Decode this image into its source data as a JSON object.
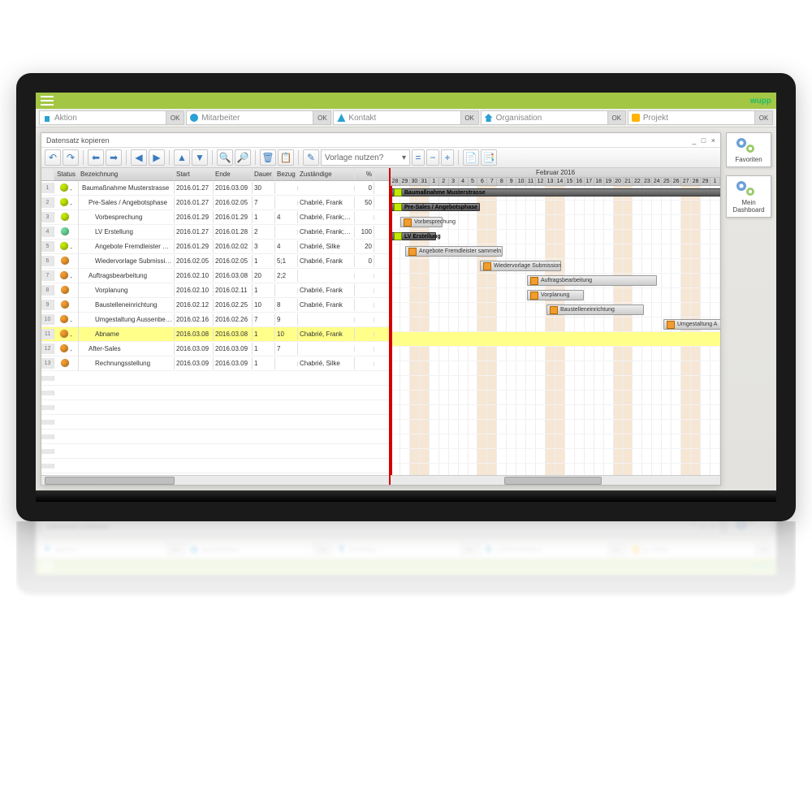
{
  "brand": "wupp",
  "search": [
    {
      "icon": "briefcase",
      "label": "Aktion",
      "ok": "OK"
    },
    {
      "icon": "people",
      "label": "Mitarbeiter",
      "ok": "OK"
    },
    {
      "icon": "contact",
      "label": "Kontakt",
      "ok": "OK"
    },
    {
      "icon": "house",
      "label": "Organisation",
      "ok": "OK"
    },
    {
      "icon": "proj",
      "label": "Projekt",
      "ok": "OK"
    }
  ],
  "window": {
    "title": "Datensatz kopieren",
    "min": "_",
    "max": "□",
    "close": "×"
  },
  "toolbar": {
    "vorlage_label": "Vorlage nutzen?",
    "vorlage_dd": "▾"
  },
  "columns": {
    "num": "",
    "status": "Status",
    "desc": "Bezeichnung",
    "start": "Start",
    "end": "Ende",
    "dur": "Dauer",
    "ref": "Bezug",
    "resp": "Zuständige",
    "pct": "%"
  },
  "rows": [
    {
      "n": 1,
      "color": "#c2e800",
      "dash": "-",
      "desc": "Baumaßnahme Musterstrasse",
      "start": "2016.01.27",
      "end": "2016.03.09",
      "dur": "30",
      "ref": "",
      "resp": "",
      "pct": "0",
      "indent": 0,
      "gs": 0,
      "gw": 420,
      "summary": true
    },
    {
      "n": 2,
      "color": "#c2e800",
      "dash": "-",
      "desc": "Pre-Sales / Angebotsphase",
      "start": "2016.01.27",
      "end": "2016.02.05",
      "dur": "7",
      "ref": "",
      "resp": "Chabrié, Frank",
      "pct": "50",
      "indent": 1,
      "gs": 0,
      "gw": 110,
      "summary": true
    },
    {
      "n": 3,
      "color": "#c2e800",
      "dash": "",
      "desc": "Vorbesprechung",
      "start": "2016.01.29",
      "end": "2016.01.29",
      "dur": "1",
      "ref": "4",
      "resp": "Chabrié, Frank; Chabrié, Silke",
      "pct": "",
      "indent": 2,
      "gs": 12,
      "gw": 52
    },
    {
      "n": 4,
      "color": "#6bd99a",
      "dash": "",
      "desc": "LV Erstellung",
      "start": "2016.01.27",
      "end": "2016.01.28",
      "dur": "2",
      "ref": "",
      "resp": "Chabrié, Frank; Chabrié, Silke",
      "pct": "100",
      "indent": 2,
      "gs": 0,
      "gw": 56,
      "summary": true
    },
    {
      "n": 5,
      "color": "#c2e800",
      "dash": "-",
      "desc": "Angebote Fremdleister samm",
      "start": "2016.01.29",
      "end": "2016.02.02",
      "dur": "3",
      "ref": "4",
      "resp": "Chabrié, Silke",
      "pct": "20",
      "indent": 2,
      "gs": 18,
      "gw": 120
    },
    {
      "n": 6,
      "color": "#f29b2e",
      "dash": "",
      "desc": "Wiedervorlage Submission",
      "start": "2016.02.05",
      "end": "2016.02.05",
      "dur": "1",
      "ref": "5;1",
      "resp": "Chabrié, Frank",
      "pct": "0",
      "indent": 2,
      "gs": 110,
      "gw": 100
    },
    {
      "n": 7,
      "color": "#f29b2e",
      "dash": "-",
      "desc": "Auftragsbearbeitung",
      "start": "2016.02.10",
      "end": "2016.03.08",
      "dur": "20",
      "ref": "2;2",
      "resp": "",
      "pct": "",
      "indent": 1,
      "gs": 168,
      "gw": 160
    },
    {
      "n": 8,
      "color": "#f29b2e",
      "dash": "",
      "desc": "Vorplanung",
      "start": "2016.02.10",
      "end": "2016.02.11",
      "dur": "1",
      "ref": "",
      "resp": "Chabrié, Frank",
      "pct": "",
      "indent": 2,
      "gs": 168,
      "gw": 70
    },
    {
      "n": 9,
      "color": "#f29b2e",
      "dash": "",
      "desc": "Baustelleneinrichtung",
      "start": "2016.02.12",
      "end": "2016.02.25",
      "dur": "10",
      "ref": "8",
      "resp": "Chabrié, Frank",
      "pct": "",
      "indent": 2,
      "gs": 192,
      "gw": 120
    },
    {
      "n": 10,
      "color": "#f29b2e",
      "dash": "-",
      "desc": "Umgestaltung Aussenbereic",
      "start": "2016.02.16",
      "end": "2016.02.26",
      "dur": "7",
      "ref": "9",
      "resp": "",
      "pct": "",
      "indent": 2,
      "gs": 336,
      "gw": 80
    },
    {
      "n": 11,
      "color": "#f29b2e",
      "dash": "-",
      "desc": "Abname",
      "start": "2016.03.08",
      "end": "2016.03.08",
      "dur": "1",
      "ref": "10",
      "resp": "Chabrié, Frank",
      "pct": "",
      "indent": 2,
      "selected": true
    },
    {
      "n": 12,
      "color": "#f29b2e",
      "dash": "-",
      "desc": "After-Sales",
      "start": "2016.03.09",
      "end": "2016.03.09",
      "dur": "1",
      "ref": "7",
      "resp": "",
      "pct": "",
      "indent": 1
    },
    {
      "n": 13,
      "color": "#f29b2e",
      "dash": "",
      "desc": "Rechnungsstellung",
      "start": "2016.03.09",
      "end": "2016.03.09",
      "dur": "1",
      "ref": "",
      "resp": "Chabrié, Silke",
      "pct": "",
      "indent": 2
    }
  ],
  "gantt": {
    "month": "Februar 2016",
    "days": [
      "28",
      "29",
      "30",
      "31",
      "1",
      "2",
      "3",
      "4",
      "5",
      "6",
      "7",
      "8",
      "9",
      "10",
      "11",
      "12",
      "13",
      "14",
      "15",
      "16",
      "17",
      "18",
      "19",
      "20",
      "21",
      "22",
      "23",
      "24",
      "25",
      "26",
      "27",
      "28",
      "29",
      "1"
    ],
    "weekend": [
      2,
      3,
      9,
      10,
      16,
      17,
      23,
      24,
      30,
      31
    ],
    "labels": {
      "0": "Baumaßnahme Musterstrasse",
      "1": "Pre-Sales / Angebotsphase",
      "2": "Vorbesprechung",
      "3": "LV Erstellung",
      "4": "Angebote Fremdleister sammeln",
      "5": "Wiedervorlage Submission",
      "6": "Auftragsbearbeitung",
      "7": "Vorplanung",
      "8": "Baustelleneinrichtung",
      "9": "Umgestaltung A"
    }
  },
  "side": [
    {
      "label": "Favoriten"
    },
    {
      "label": "Mein Dashboard"
    }
  ]
}
